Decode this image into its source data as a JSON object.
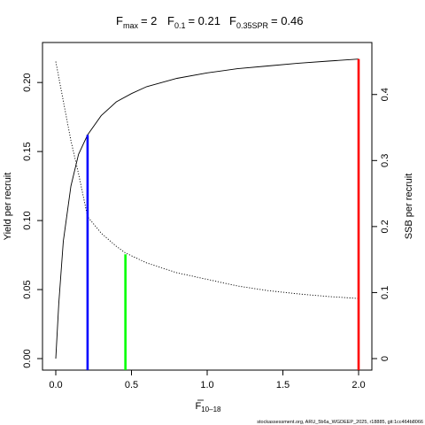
{
  "chart_data": {
    "type": "line",
    "title_parts": {
      "fmax_label": "F",
      "fmax_sub": "max",
      "fmax_value": "= 2",
      "f01_label": "F",
      "f01_sub": "0.1",
      "f01_value": "= 0.21",
      "fspr_label": "F",
      "fspr_sub": "0.35SPR",
      "fspr_value": "= 0.46"
    },
    "xlabel": {
      "base": "F",
      "sub": "10–18"
    },
    "ylabel_left": "Yield per recruit",
    "ylabel_right": "SSB per recruit",
    "footer": "stockassessment.org, ARU_5b6a_WGDEEP_2025, r18885, git:1cc464b8066",
    "xlim": [
      0,
      2
    ],
    "ylim_left": [
      0,
      0.22
    ],
    "ylim_right": [
      0,
      0.46
    ],
    "x_ticks": [
      0,
      0.5,
      1,
      1.5,
      2
    ],
    "x_tick_labels": [
      "0.0",
      "0.5",
      "1.0",
      "1.5",
      "2.0"
    ],
    "y_left_ticks": [
      0,
      0.05,
      0.1,
      0.15,
      0.2
    ],
    "y_left_tick_labels": [
      "0.00",
      "0.05",
      "0.10",
      "0.15",
      "0.20"
    ],
    "y_right_ticks": [
      0,
      0.1,
      0.2,
      0.3,
      0.4
    ],
    "y_right_tick_labels": [
      "0",
      "0.1",
      "0.2",
      "0.3",
      "0.4"
    ],
    "series": [
      {
        "axis": "left",
        "style": "solid",
        "color": "#000000",
        "x": [
          0,
          0.02,
          0.05,
          0.1,
          0.15,
          0.21,
          0.3,
          0.4,
          0.5,
          0.6,
          0.8,
          1.0,
          1.2,
          1.4,
          1.6,
          1.8,
          2.0
        ],
        "y": [
          0,
          0.04,
          0.085,
          0.125,
          0.148,
          0.162,
          0.176,
          0.186,
          0.192,
          0.197,
          0.203,
          0.207,
          0.21,
          0.212,
          0.214,
          0.2155,
          0.217
        ]
      },
      {
        "axis": "right",
        "style": "dotted",
        "color": "#000000",
        "x": [
          0,
          0.05,
          0.1,
          0.15,
          0.21,
          0.3,
          0.4,
          0.46,
          0.6,
          0.8,
          1.0,
          1.2,
          1.4,
          1.6,
          1.8,
          2.0
        ],
        "y": [
          0.45,
          0.39,
          0.33,
          0.28,
          0.215,
          0.19,
          0.17,
          0.16,
          0.145,
          0.13,
          0.12,
          0.11,
          0.103,
          0.098,
          0.094,
          0.091
        ]
      }
    ],
    "reference_lines": [
      {
        "x": 0.21,
        "y": 0.162,
        "color": "#0000ff"
      },
      {
        "x": 0.46,
        "y": 0.0755,
        "color": "#00ff00"
      },
      {
        "x": 2.0,
        "y": 0.217,
        "color": "#ff0000"
      }
    ]
  }
}
